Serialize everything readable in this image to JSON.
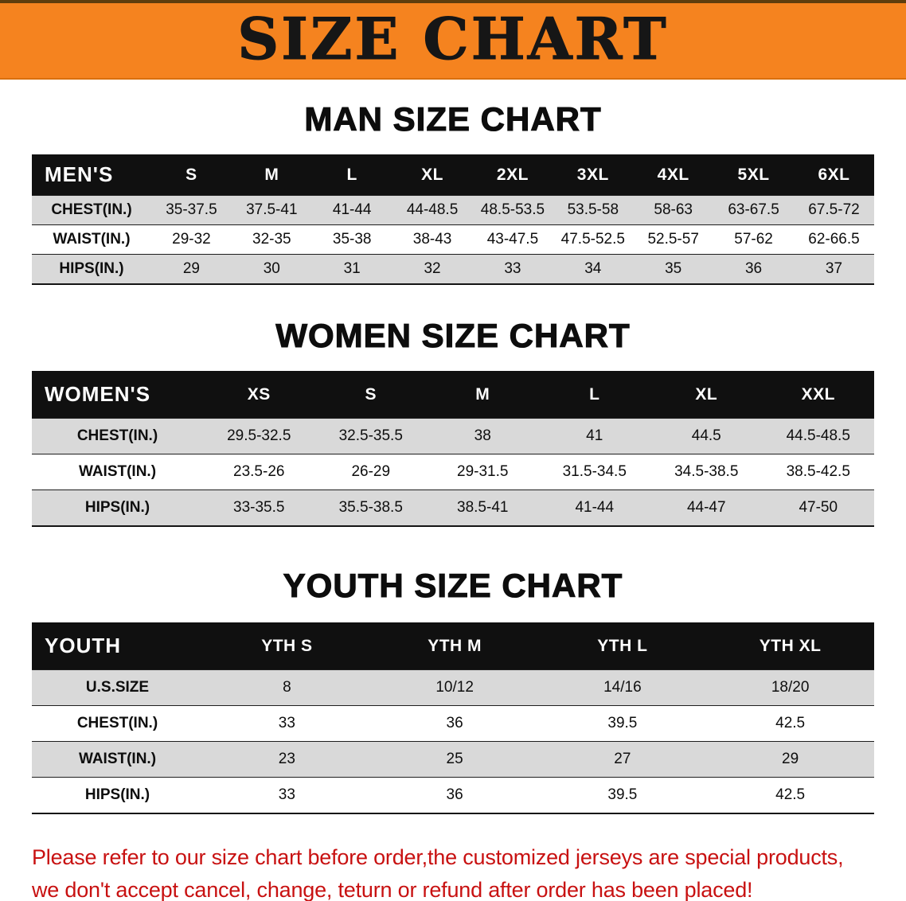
{
  "banner": {
    "title": "SIZE CHART"
  },
  "colors": {
    "banner_bg": "#F5831F",
    "header_bg": "#101010",
    "row_gray": "#D9D9D9",
    "notice_red": "#C81111"
  },
  "sections": [
    {
      "id": "men",
      "heading": "MAN SIZE CHART",
      "table": {
        "header": [
          "MEN'S",
          "S",
          "M",
          "L",
          "XL",
          "2XL",
          "3XL",
          "4XL",
          "5XL",
          "6XL"
        ],
        "rows": [
          {
            "label": "CHEST(IN.)",
            "values": [
              "35-37.5",
              "37.5-41",
              "41-44",
              "44-48.5",
              "48.5-53.5",
              "53.5-58",
              "58-63",
              "63-67.5",
              "67.5-72"
            ]
          },
          {
            "label": "WAIST(IN.)",
            "values": [
              "29-32",
              "32-35",
              "35-38",
              "38-43",
              "43-47.5",
              "47.5-52.5",
              "52.5-57",
              "57-62",
              "62-66.5"
            ]
          },
          {
            "label": "HIPS(IN.)",
            "values": [
              "29",
              "30",
              "31",
              "32",
              "33",
              "34",
              "35",
              "36",
              "37"
            ]
          }
        ]
      }
    },
    {
      "id": "women",
      "heading": "WOMEN SIZE CHART",
      "table": {
        "header": [
          "WOMEN'S",
          "XS",
          "S",
          "M",
          "L",
          "XL",
          "XXL"
        ],
        "rows": [
          {
            "label": "CHEST(IN.)",
            "values": [
              "29.5-32.5",
              "32.5-35.5",
              "38",
              "41",
              "44.5",
              "44.5-48.5"
            ]
          },
          {
            "label": "WAIST(IN.)",
            "values": [
              "23.5-26",
              "26-29",
              "29-31.5",
              "31.5-34.5",
              "34.5-38.5",
              "38.5-42.5"
            ]
          },
          {
            "label": "HIPS(IN.)",
            "values": [
              "33-35.5",
              "35.5-38.5",
              "38.5-41",
              "41-44",
              "44-47",
              "47-50"
            ]
          }
        ]
      }
    },
    {
      "id": "youth",
      "heading": "YOUTH SIZE CHART",
      "table": {
        "header": [
          "YOUTH",
          "YTH S",
          "YTH M",
          "YTH L",
          "YTH XL"
        ],
        "rows": [
          {
            "label": "U.S.SIZE",
            "values": [
              "8",
              "10/12",
              "14/16",
              "18/20"
            ]
          },
          {
            "label": "CHEST(IN.)",
            "values": [
              "33",
              "36",
              "39.5",
              "42.5"
            ]
          },
          {
            "label": "WAIST(IN.)",
            "values": [
              "23",
              "25",
              "27",
              "29"
            ]
          },
          {
            "label": "HIPS(IN.)",
            "values": [
              "33",
              "36",
              "39.5",
              "42.5"
            ]
          }
        ]
      }
    }
  ],
  "notice": {
    "line1": "Please refer to our size chart before order,the customized jerseys are special products,",
    "line2": "we don't accept cancel, change, teturn or refund after order has been placed!"
  }
}
